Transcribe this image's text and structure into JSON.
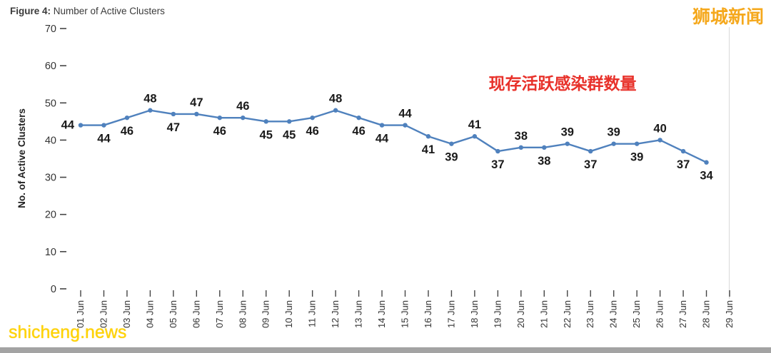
{
  "figure": {
    "label": "Figure 4:",
    "title": " Number of Active Clusters"
  },
  "watermarks": {
    "top_right": "狮城新闻",
    "bottom_left": "shicheng.news"
  },
  "chart_data": {
    "type": "line",
    "title": "Figure 4: Number of Active Clusters",
    "xlabel": "",
    "ylabel": "No. of Active Clusters",
    "ylim": [
      0,
      70
    ],
    "yticks": [
      0,
      10,
      20,
      30,
      40,
      50,
      60,
      70
    ],
    "grid": false,
    "legend_position": "none",
    "line_color": "#4f81bd",
    "marker_color": "#4f81bd",
    "label_color": "#1a1a1a",
    "categories": [
      "01 Jun",
      "02 Jun",
      "03 Jun",
      "04 Jun",
      "05 Jun",
      "06 Jun",
      "07 Jun",
      "08 Jun",
      "09 Jun",
      "10 Jun",
      "11 Jun",
      "12 Jun",
      "13 Jun",
      "14 Jun",
      "15 Jun",
      "16 Jun",
      "17 Jun",
      "18 Jun",
      "19 Jun",
      "20 Jun",
      "21 Jun",
      "22 Jun",
      "23 Jun",
      "24 Jun",
      "25 Jun",
      "26 Jun",
      "27 Jun",
      "28 Jun",
      "29 Jun"
    ],
    "series": [
      {
        "name": "No. of Active Clusters",
        "values": [
          44,
          44,
          46,
          48,
          47,
          47,
          46,
          46,
          45,
          45,
          46,
          48,
          46,
          44,
          44,
          41,
          39,
          41,
          37,
          38,
          38,
          39,
          37,
          39,
          39,
          40,
          37,
          34,
          null
        ]
      }
    ],
    "label_positions": [
      "left",
      "below",
      "below",
      "above",
      "below",
      "above",
      "below",
      "above",
      "below",
      "below",
      "below",
      "above",
      "below",
      "below",
      "above",
      "below",
      "below",
      "above",
      "below",
      "above",
      "below",
      "above",
      "below",
      "above",
      "below",
      "above",
      "below",
      "below",
      null
    ],
    "annotation": {
      "text": "现存活跃感染群数量",
      "color": "#e8312a"
    }
  }
}
